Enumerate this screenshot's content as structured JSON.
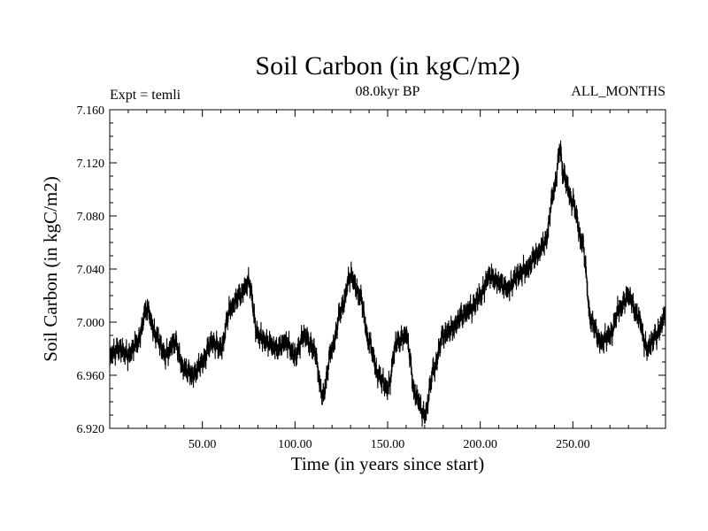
{
  "chart_data": {
    "type": "line",
    "title": "Soil Carbon (in kgC/m2)",
    "subtitle": "08.0kyr BP",
    "left_annotation": "Expt = temli",
    "right_annotation": "ALL_MONTHS",
    "xlabel": "Time (in years since start)",
    "ylabel": "Soil Carbon (in kgC/m2)",
    "xlim": [
      0,
      300
    ],
    "ylim": [
      6.92,
      7.16
    ],
    "x_ticks": [
      50,
      100,
      150,
      200,
      250
    ],
    "x_tick_labels": [
      "50.00",
      "100.00",
      "150.00",
      "200.00",
      "250.00"
    ],
    "y_ticks": [
      6.92,
      6.96,
      7.0,
      7.04,
      7.08,
      7.12,
      7.16
    ],
    "y_tick_labels": [
      "6.920",
      "6.960",
      "7.000",
      "7.040",
      "7.080",
      "7.120",
      "7.160"
    ],
    "grid": false,
    "line_color": "#000000",
    "series": [
      {
        "name": "Soil Carbon",
        "x": [
          0,
          5,
          10,
          15,
          20,
          25,
          30,
          35,
          40,
          45,
          50,
          55,
          60,
          65,
          70,
          75,
          80,
          85,
          90,
          95,
          100,
          105,
          110,
          115,
          120,
          125,
          130,
          135,
          140,
          145,
          150,
          155,
          160,
          165,
          170,
          175,
          180,
          185,
          190,
          195,
          200,
          205,
          210,
          215,
          220,
          225,
          230,
          235,
          240,
          243,
          245,
          250,
          255,
          260,
          265,
          270,
          275,
          280,
          285,
          290,
          295,
          300
        ],
        "y": [
          6.975,
          6.98,
          6.975,
          6.985,
          7.01,
          6.99,
          6.975,
          6.985,
          6.965,
          6.96,
          6.97,
          6.985,
          6.98,
          7.01,
          7.02,
          7.03,
          6.99,
          6.985,
          6.98,
          6.985,
          6.975,
          6.99,
          6.98,
          6.945,
          6.98,
          7.01,
          7.035,
          7.02,
          6.985,
          6.96,
          6.95,
          6.985,
          6.99,
          6.945,
          6.93,
          6.965,
          6.99,
          6.995,
          7.005,
          7.01,
          7.02,
          7.035,
          7.03,
          7.025,
          7.035,
          7.04,
          7.05,
          7.06,
          7.1,
          7.13,
          7.11,
          7.09,
          7.06,
          7.0,
          6.985,
          6.99,
          7.01,
          7.02,
          7.005,
          6.98,
          6.99,
          7.005
        ]
      }
    ]
  }
}
